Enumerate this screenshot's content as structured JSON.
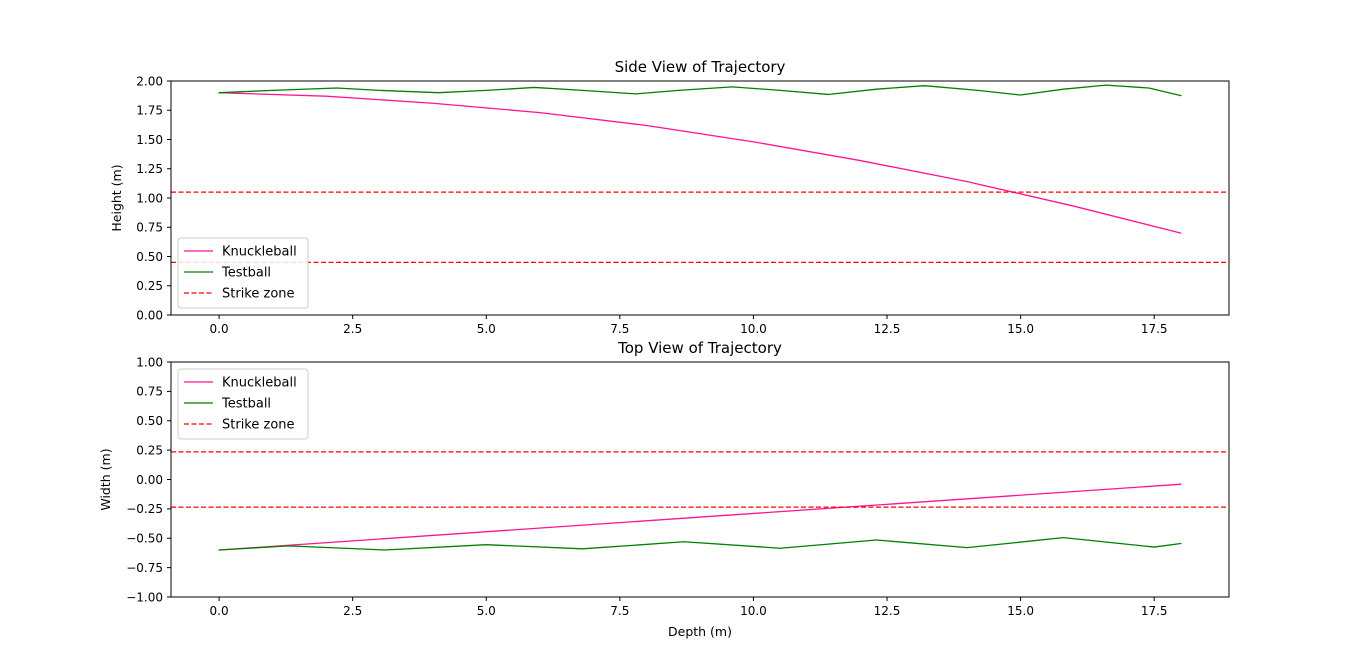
{
  "colors": {
    "knuckleball": "#ff1493",
    "testball": "#008000",
    "strike_zone": "#ff0000"
  },
  "chart_data": [
    {
      "type": "line",
      "title": "Side View of Trajectory",
      "xlabel": "",
      "ylabel": "Height (m)",
      "xlim": [
        -0.9,
        18.9
      ],
      "ylim": [
        0.0,
        2.0
      ],
      "xticks": [
        "0.0",
        "2.5",
        "5.0",
        "7.5",
        "10.0",
        "12.5",
        "15.0",
        "17.5"
      ],
      "yticks": [
        "0.00",
        "0.25",
        "0.50",
        "0.75",
        "1.00",
        "1.25",
        "1.50",
        "1.75",
        "2.00"
      ],
      "legend_position": "lower-left",
      "grid": false,
      "series": [
        {
          "name": "Knuckleball",
          "style": "solid",
          "x": [
            0,
            2,
            4,
            6,
            8,
            10,
            12,
            14,
            16,
            18
          ],
          "y": [
            1.9,
            1.87,
            1.81,
            1.73,
            1.62,
            1.48,
            1.32,
            1.14,
            0.93,
            0.7
          ]
        },
        {
          "name": "Testball",
          "style": "solid",
          "x": [
            0,
            1,
            2.2,
            3,
            4.1,
            5,
            5.9,
            6.8,
            7.8,
            8.6,
            9.6,
            10.5,
            11.4,
            12.3,
            13.2,
            14.2,
            15,
            15.8,
            16.6,
            17.4,
            18
          ],
          "y": [
            1.9,
            1.92,
            1.94,
            1.92,
            1.9,
            1.92,
            1.945,
            1.92,
            1.89,
            1.92,
            1.95,
            1.92,
            1.885,
            1.93,
            1.96,
            1.92,
            1.88,
            1.93,
            1.965,
            1.94,
            1.875
          ]
        },
        {
          "name": "Strike zone",
          "style": "dashed",
          "hlines": [
            1.05,
            0.45
          ]
        }
      ]
    },
    {
      "type": "line",
      "title": "Top View of Trajectory",
      "xlabel": "Depth (m)",
      "ylabel": "Width (m)",
      "xlim": [
        -0.9,
        18.9
      ],
      "ylim": [
        -1.0,
        1.0
      ],
      "xticks": [
        "0.0",
        "2.5",
        "5.0",
        "7.5",
        "10.0",
        "12.5",
        "15.0",
        "17.5"
      ],
      "yticks": [
        "−1.00",
        "−0.75",
        "−0.50",
        "−0.25",
        "0.00",
        "0.25",
        "0.50",
        "0.75",
        "1.00"
      ],
      "legend_position": "upper-left",
      "grid": false,
      "series": [
        {
          "name": "Knuckleball",
          "style": "solid",
          "x": [
            0,
            18
          ],
          "y": [
            -0.6,
            -0.04
          ]
        },
        {
          "name": "Testball",
          "style": "solid",
          "x": [
            0,
            1.3,
            3.1,
            5,
            6.8,
            8.7,
            10.5,
            12.3,
            14,
            15.8,
            17.5,
            18
          ],
          "y": [
            -0.6,
            -0.565,
            -0.6,
            -0.555,
            -0.59,
            -0.53,
            -0.585,
            -0.515,
            -0.58,
            -0.495,
            -0.575,
            -0.545
          ]
        },
        {
          "name": "Strike zone",
          "style": "dashed",
          "hlines": [
            0.235,
            -0.235
          ]
        }
      ]
    }
  ]
}
